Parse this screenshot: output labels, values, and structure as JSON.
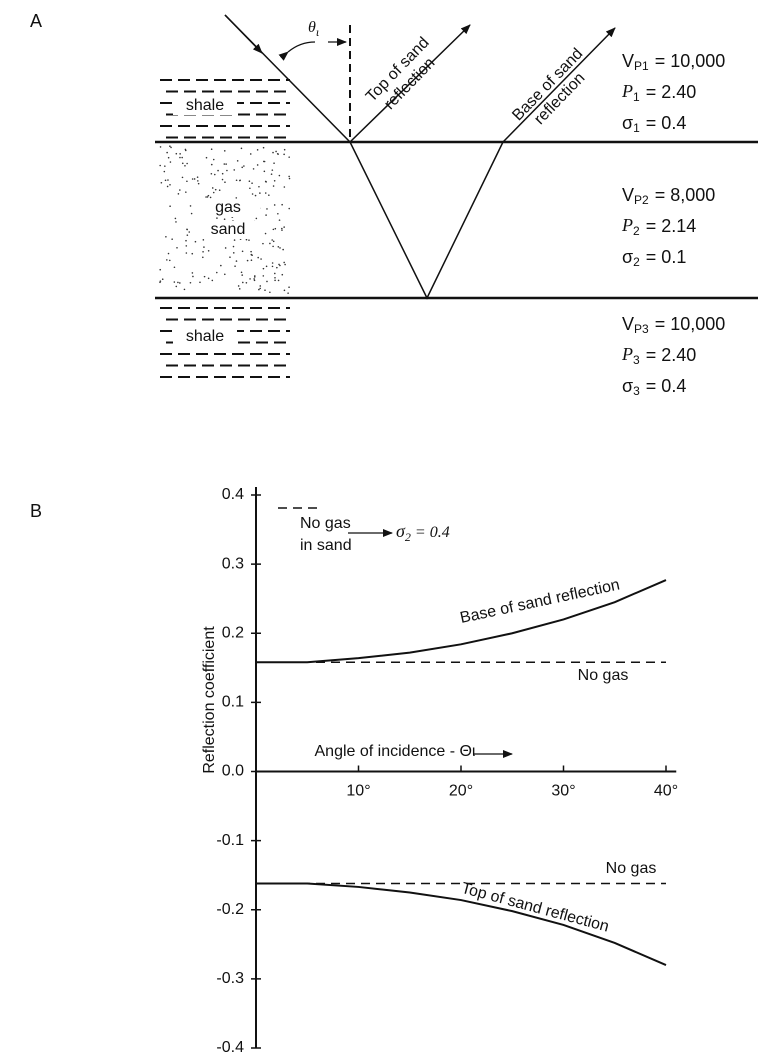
{
  "panel_labels": [
    "A",
    "B"
  ],
  "diagram": {
    "layers": [
      {
        "lines": [
          "shale"
        ]
      },
      {
        "lines": [
          "gas",
          "sand"
        ]
      },
      {
        "lines": [
          "shale"
        ]
      }
    ],
    "angle": {
      "sym": "θ",
      "sub": "ι"
    },
    "rays": [
      {
        "lines": [
          "Top of sand",
          "reflection"
        ]
      },
      {
        "lines": [
          "Base of sand",
          "reflection"
        ]
      }
    ],
    "properties": [
      [
        {
          "sym": "V",
          "sub": "P1",
          "rest": "= 10,000"
        },
        {
          "sym": "P",
          "sub": "1",
          "rest": "= 2.40"
        },
        {
          "sym": "σ",
          "sub": "1",
          "rest": "= 0.4"
        }
      ],
      [
        {
          "sym": "V",
          "sub": "P2",
          "rest": "= 8,000"
        },
        {
          "sym": "P",
          "sub": "2",
          "rest": "= 2.14"
        },
        {
          "sym": "σ",
          "sub": "2",
          "rest": "= 0.1"
        }
      ],
      [
        {
          "sym": "V",
          "sub": "P3",
          "rest": "= 10,000"
        },
        {
          "sym": "P",
          "sub": "3",
          "rest": "= 2.40"
        },
        {
          "sym": "σ",
          "sub": "3",
          "rest": "= 0.4"
        }
      ]
    ]
  },
  "chart_data": {
    "type": "line",
    "y_label": "Reflection coefficient",
    "x_label": "Angle of incidence - Θι",
    "x": [
      0,
      5,
      10,
      15,
      20,
      25,
      30,
      35,
      40
    ],
    "series": [
      {
        "name": "Base of sand reflection",
        "color": "#111111",
        "style": "solid",
        "values": [
          0.158,
          0.158,
          0.164,
          0.172,
          0.184,
          0.2,
          0.22,
          0.245,
          0.277
        ]
      },
      {
        "name": "No gas",
        "color": "#111111",
        "style": "dashed",
        "values": [
          0.158,
          0.158,
          0.158,
          0.158,
          0.158,
          0.158,
          0.158,
          0.158,
          0.158
        ]
      },
      {
        "name": "Top of sand reflection",
        "color": "#111111",
        "style": "solid",
        "values": [
          -0.162,
          -0.162,
          -0.167,
          -0.175,
          -0.186,
          -0.202,
          -0.222,
          -0.248,
          -0.28
        ]
      },
      {
        "name": "No gas",
        "color": "#111111",
        "style": "dashed",
        "values": [
          -0.162,
          -0.162,
          -0.162,
          -0.162,
          -0.162,
          -0.162,
          -0.162,
          -0.162,
          -0.162
        ]
      }
    ],
    "legend_note": {
      "lines": [
        "No gas",
        "in sand"
      ],
      "result": {
        "sym": "σ",
        "sub": "2",
        "rest": "= 0.4"
      }
    },
    "xlim": [
      0,
      41
    ],
    "ylim": [
      -0.4,
      0.4
    ],
    "xticks": [
      {
        "value": 10,
        "label": "10°"
      },
      {
        "value": 20,
        "label": "20°"
      },
      {
        "value": 30,
        "label": "30°"
      },
      {
        "value": 40,
        "label": "40°"
      }
    ],
    "yticks": [
      0.4,
      0.3,
      0.2,
      0.1,
      {
        "value": 0,
        "label": "0.0"
      },
      -0.1,
      -0.2,
      -0.3,
      -0.4
    ]
  }
}
